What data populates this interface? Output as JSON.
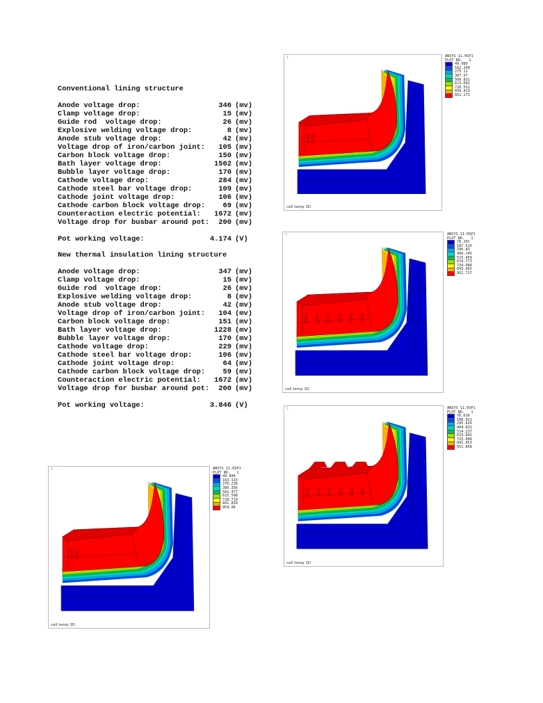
{
  "sections": [
    {
      "title": "Conventional lining structure",
      "rows": [
        {
          "label": "Anode voltage drop:",
          "value": "346",
          "unit": "(mv)"
        },
        {
          "label": "Clamp voltage drop:",
          "value": "15",
          "unit": "(mv)"
        },
        {
          "label": "Guide rod  voltage drop:",
          "value": "26",
          "unit": "(mv)"
        },
        {
          "label": "Explosive welding voltage drop:",
          "value": "8",
          "unit": "(mv)"
        },
        {
          "label": "Anode stub voltage drop:",
          "value": "42",
          "unit": "(mv)"
        },
        {
          "label": "Voltage drop of iron/carbon joint:",
          "value": "105",
          "unit": "(mv)"
        },
        {
          "label": "Carbon block voltage drop:",
          "value": "150",
          "unit": "(mv)"
        },
        {
          "label": "Bath layer voltage drop:",
          "value": "1502",
          "unit": "(mv)"
        },
        {
          "label": "Bubble layer voltage drop:",
          "value": "170",
          "unit": "(mv)"
        },
        {
          "label": "Cathode voltage drop:",
          "value": "284",
          "unit": "(mv)"
        },
        {
          "label": "Cathode steel bar voltage drop:",
          "value": "109",
          "unit": "(mv)"
        },
        {
          "label": "Cathode joint voltage drop:",
          "value": "106",
          "unit": "(mv)"
        },
        {
          "label": "Cathode carbon block voltage drop:",
          "value": "69",
          "unit": "(mv)"
        },
        {
          "label": "Counteraction electric potential:",
          "value": "1672",
          "unit": "(mv)"
        },
        {
          "label": "Voltage drop for busbar around pot:",
          "value": "200",
          "unit": "(mv)"
        }
      ],
      "total": {
        "label": "Pot working voltage:",
        "value": "4.174",
        "unit": "(V)"
      }
    },
    {
      "title": "New thermal insulation lining structure",
      "rows": [
        {
          "label": "Anode voltage drop:",
          "value": "347",
          "unit": "(mv)"
        },
        {
          "label": "Clamp voltage drop:",
          "value": "15",
          "unit": "(mv)"
        },
        {
          "label": "Guide rod  voltage drop:",
          "value": "26",
          "unit": "(mv)"
        },
        {
          "label": "Explosive welding voltage drop:",
          "value": "8",
          "unit": "(mv)"
        },
        {
          "label": "Anode stub voltage drop:",
          "value": "42",
          "unit": "(mv)"
        },
        {
          "label": "Voltage drop of iron/carbon joint:",
          "value": "104",
          "unit": "(mv)"
        },
        {
          "label": "Carbon block voltage drop:",
          "value": "151",
          "unit": "(mv)"
        },
        {
          "label": "Bath layer voltage drop:",
          "value": "1228",
          "unit": "(mv)"
        },
        {
          "label": "Bubble layer voltage drop:",
          "value": "170",
          "unit": "(mv)"
        },
        {
          "label": "Cathode voltage drop:",
          "value": "229",
          "unit": "(mv)"
        },
        {
          "label": "Cathode steel bar voltage drop:",
          "value": "106",
          "unit": "(mv)"
        },
        {
          "label": "Cathode joint voltage drop:",
          "value": "64",
          "unit": "(mv)"
        },
        {
          "label": "Cathode carbon block voltage drop:",
          "value": "59",
          "unit": "(mv)"
        },
        {
          "label": "Counteraction electric potential:",
          "value": "1672",
          "unit": "(mv)"
        },
        {
          "label": "Voltage drop for busbar around pot:",
          "value": "200",
          "unit": "(mv)"
        }
      ],
      "total": {
        "label": "Pot working voltage:",
        "value": "3.846",
        "unit": "(V)"
      }
    }
  ],
  "legend_colors": [
    "#0000c8",
    "#0050e6",
    "#00a8f0",
    "#00d8c0",
    "#00c050",
    "#9ce000",
    "#ffff00",
    "#ffb000",
    "#ff0000"
  ],
  "panels": [
    {
      "id": "plot-top-right",
      "header_1": "ANSYS 11.0SP1",
      "header_2": "PLOT NO.   1",
      "caption": "cell temp 3D",
      "corner": "1",
      "values": [
        "49.989",
        "162.249",
        "275.11",
        "387.97",
        "500.831",
        "613.692",
        "726.552",
        "839.413",
        "952.273"
      ]
    },
    {
      "id": "plot-middle-right",
      "header_1": "ANSYS 11.0SP1",
      "header_2": "PLOT NO.   1",
      "caption": "cell temp 3D",
      "corner": "1",
      "values": [
        "78.201",
        "187.516",
        "296.83",
        "406.145",
        "515.459",
        "624.773",
        "734.088",
        "843.402",
        "952.717"
      ]
    },
    {
      "id": "plot-bottom-right",
      "header_1": "ANSYS 11.0SP1",
      "header_2": "PLOT NO.   1",
      "caption": "cell temp 3D",
      "corner": "1",
      "values": [
        "76.616",
        "186.021",
        "295.426",
        "404.832",
        "514.237",
        "623.642",
        "733.048",
        "842.453",
        "951.858"
      ]
    },
    {
      "id": "plot-bottom-left",
      "header_1": "ANSYS 11.0SP1",
      "header_2": "PLOT NO.   1",
      "caption": "cell temp 3D",
      "corner": "1",
      "values": [
        "49.994",
        "163.115",
        "276.236",
        "389.356",
        "502.477",
        "615.598",
        "728.719",
        "841.839",
        "954.96"
      ]
    }
  ]
}
